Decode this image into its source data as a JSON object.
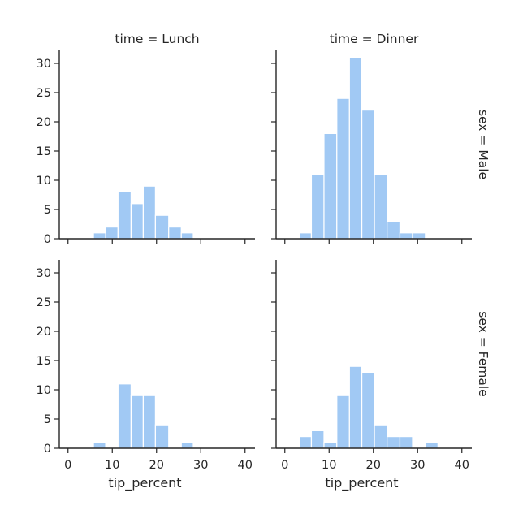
{
  "chart_data": {
    "type": "bar",
    "layout": "facet-grid 2x2",
    "xlabel": "tip_percent",
    "ylabel": "",
    "xlim": [
      -3,
      42
    ],
    "ylim": [
      0,
      32.5
    ],
    "x_ticks": [
      0,
      10,
      20,
      30,
      40
    ],
    "y_ticks": [
      0,
      5,
      10,
      15,
      20,
      25,
      30
    ],
    "bar_color": "#a1c9f4",
    "axis_color": "#262626",
    "grid": false,
    "col_titles": [
      "time = Lunch",
      "time = Dinner"
    ],
    "row_titles": [
      "sex = Male",
      "sex = Female"
    ],
    "panels": [
      {
        "row": 0,
        "col": 0,
        "bins": [
          {
            "x0": 5.75,
            "x1": 8.5,
            "value": 1
          },
          {
            "x0": 8.5,
            "x1": 11.3,
            "value": 2
          },
          {
            "x0": 11.3,
            "x1": 14.25,
            "value": 8
          },
          {
            "x0": 14.25,
            "x1": 17.0,
            "value": 6
          },
          {
            "x0": 17.0,
            "x1": 19.75,
            "value": 9
          },
          {
            "x0": 19.75,
            "x1": 22.75,
            "value": 4
          },
          {
            "x0": 22.75,
            "x1": 25.6,
            "value": 2
          },
          {
            "x0": 25.6,
            "x1": 28.3,
            "value": 1
          }
        ]
      },
      {
        "row": 0,
        "col": 1,
        "bins": [
          {
            "x0": 3.25,
            "x1": 6.0,
            "value": 1
          },
          {
            "x0": 6.0,
            "x1": 8.85,
            "value": 11
          },
          {
            "x0": 8.85,
            "x1": 11.75,
            "value": 18
          },
          {
            "x0": 11.75,
            "x1": 14.6,
            "value": 24
          },
          {
            "x0": 14.6,
            "x1": 17.4,
            "value": 31
          },
          {
            "x0": 17.4,
            "x1": 20.25,
            "value": 22
          },
          {
            "x0": 20.25,
            "x1": 23.1,
            "value": 11
          },
          {
            "x0": 23.1,
            "x1": 26.0,
            "value": 3
          },
          {
            "x0": 26.0,
            "x1": 28.85,
            "value": 1
          },
          {
            "x0": 28.85,
            "x1": 31.75,
            "value": 1
          }
        ]
      },
      {
        "row": 1,
        "col": 0,
        "bins": [
          {
            "x0": 5.75,
            "x1": 8.5,
            "value": 1
          },
          {
            "x0": 11.3,
            "x1": 14.25,
            "value": 11
          },
          {
            "x0": 14.25,
            "x1": 17.0,
            "value": 9
          },
          {
            "x0": 17.0,
            "x1": 19.75,
            "value": 9
          },
          {
            "x0": 19.75,
            "x1": 22.75,
            "value": 4
          },
          {
            "x0": 25.6,
            "x1": 28.3,
            "value": 1
          }
        ]
      },
      {
        "row": 1,
        "col": 1,
        "bins": [
          {
            "x0": 3.25,
            "x1": 6.0,
            "value": 2
          },
          {
            "x0": 6.0,
            "x1": 8.85,
            "value": 3
          },
          {
            "x0": 8.85,
            "x1": 11.75,
            "value": 1
          },
          {
            "x0": 11.75,
            "x1": 14.6,
            "value": 9
          },
          {
            "x0": 14.6,
            "x1": 17.4,
            "value": 14
          },
          {
            "x0": 17.4,
            "x1": 20.25,
            "value": 13
          },
          {
            "x0": 20.25,
            "x1": 23.1,
            "value": 4
          },
          {
            "x0": 23.1,
            "x1": 26.0,
            "value": 2
          },
          {
            "x0": 26.0,
            "x1": 28.85,
            "value": 2
          },
          {
            "x0": 31.75,
            "x1": 34.6,
            "value": 1
          }
        ]
      }
    ]
  }
}
